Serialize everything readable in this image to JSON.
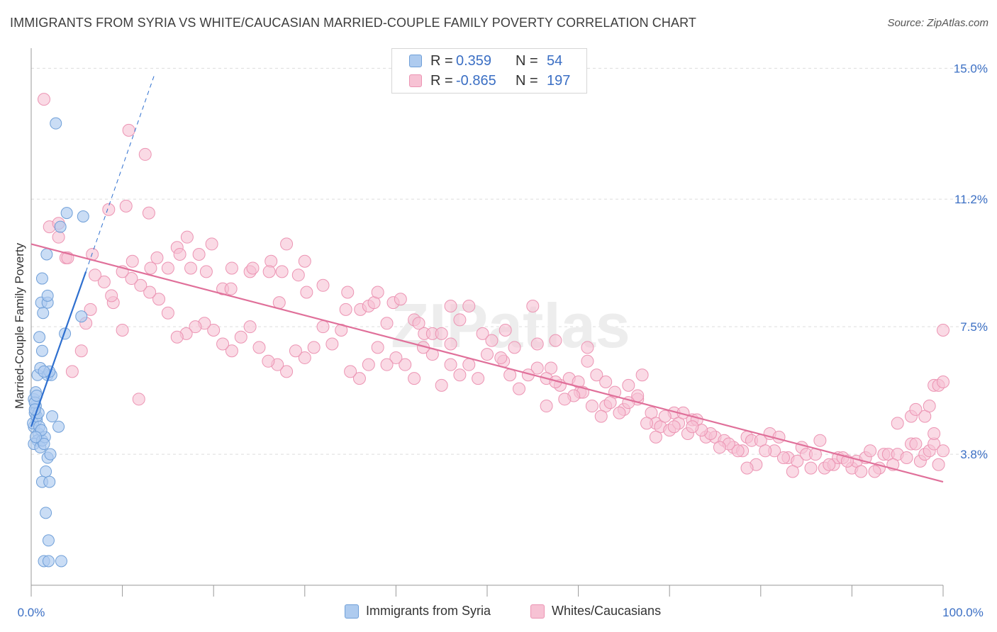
{
  "title": "IMMIGRANTS FROM SYRIA VS WHITE/CAUCASIAN MARRIED-COUPLE FAMILY POVERTY CORRELATION CHART",
  "source": "Source: ZipAtlas.com",
  "watermark": "ZIPatlas",
  "colors": {
    "blue_fill": "#aecbef",
    "blue_stroke": "#6f9fd8",
    "blue_line": "#2e6fcf",
    "pink_fill": "#f7c2d4",
    "pink_stroke": "#ec94b3",
    "pink_line": "#e0709a",
    "accent_text": "#3b6fc4"
  },
  "legend": {
    "rows": [
      {
        "r_label": "R =",
        "r_value": "0.359",
        "n_label": "N =",
        "n_value": "54"
      },
      {
        "r_label": "R =",
        "r_value": "-0.865",
        "n_label": "N =",
        "n_value": "197"
      }
    ]
  },
  "bottom_legend": [
    "Immigrants from Syria",
    "Whites/Caucasians"
  ],
  "chart_data": {
    "type": "scatter",
    "title": "IMMIGRANTS FROM SYRIA VS WHITE/CAUCASIAN MARRIED-COUPLE FAMILY POVERTY CORRELATION CHART",
    "xlabel": "",
    "ylabel": "Married-Couple Family Poverty",
    "x_tick_labels": [
      "0.0%",
      "100.0%"
    ],
    "y_tick_labels": [
      "3.8%",
      "7.5%",
      "11.2%",
      "15.0%"
    ],
    "y_ticks": [
      3.8,
      7.5,
      11.2,
      15.0
    ],
    "xlim": [
      0,
      100
    ],
    "ylim": [
      0,
      15.5
    ],
    "grid": true,
    "legend_position": "top-center",
    "series": [
      {
        "name": "Immigrants from Syria",
        "r": 0.359,
        "n": 54,
        "trend": {
          "x0": 0,
          "y0": 4.6,
          "x1": 6.0,
          "y1": 9.1,
          "dashed_to_x": 13.5,
          "dashed_to_y": 14.8
        },
        "points": [
          [
            0.3,
            4.6
          ],
          [
            0.5,
            5.2
          ],
          [
            0.4,
            5.0
          ],
          [
            0.6,
            4.8
          ],
          [
            0.2,
            4.7
          ],
          [
            0.8,
            4.4
          ],
          [
            0.3,
            5.4
          ],
          [
            0.5,
            5.6
          ],
          [
            0.4,
            5.3
          ],
          [
            0.7,
            4.2
          ],
          [
            0.6,
            4.9
          ],
          [
            0.9,
            4.6
          ],
          [
            0.3,
            4.1
          ],
          [
            1.0,
            4.0
          ],
          [
            1.2,
            4.2
          ],
          [
            1.5,
            4.3
          ],
          [
            1.4,
            4.1
          ],
          [
            1.1,
            4.5
          ],
          [
            0.8,
            5.0
          ],
          [
            0.5,
            4.3
          ],
          [
            0.7,
            6.1
          ],
          [
            1.0,
            6.3
          ],
          [
            1.8,
            6.1
          ],
          [
            2.2,
            6.1
          ],
          [
            2.0,
            6.2
          ],
          [
            0.9,
            7.2
          ],
          [
            1.2,
            6.8
          ],
          [
            1.1,
            8.2
          ],
          [
            1.8,
            8.2
          ],
          [
            1.8,
            8.4
          ],
          [
            1.3,
            7.9
          ],
          [
            1.2,
            8.9
          ],
          [
            1.7,
            9.6
          ],
          [
            3.7,
            7.3
          ],
          [
            5.5,
            7.8
          ],
          [
            2.3,
            4.9
          ],
          [
            3.0,
            4.6
          ],
          [
            1.8,
            3.7
          ],
          [
            2.1,
            3.8
          ],
          [
            1.6,
            3.3
          ],
          [
            1.2,
            3.0
          ],
          [
            2.0,
            3.0
          ],
          [
            1.6,
            2.1
          ],
          [
            1.9,
            1.3
          ],
          [
            1.4,
            0.7
          ],
          [
            1.9,
            0.7
          ],
          [
            3.3,
            0.7
          ],
          [
            3.9,
            10.8
          ],
          [
            5.7,
            10.7
          ],
          [
            3.2,
            10.4
          ],
          [
            2.7,
            13.4
          ],
          [
            0.4,
            5.1
          ],
          [
            1.4,
            6.2
          ],
          [
            0.6,
            5.5
          ]
        ]
      },
      {
        "name": "Whites/Caucasians",
        "r": -0.865,
        "n": 197,
        "trend": {
          "x0": 0,
          "y0": 9.9,
          "x1": 100,
          "y1": 3.0
        },
        "points": [
          [
            1.4,
            14.1
          ],
          [
            10.7,
            13.2
          ],
          [
            12.5,
            12.5
          ],
          [
            10.4,
            11.0
          ],
          [
            8.5,
            10.9
          ],
          [
            12.9,
            10.8
          ],
          [
            2.0,
            10.4
          ],
          [
            3.0,
            10.5
          ],
          [
            3.0,
            10.1
          ],
          [
            3.8,
            9.5
          ],
          [
            4.0,
            9.5
          ],
          [
            6.7,
            9.6
          ],
          [
            11.1,
            9.4
          ],
          [
            13.8,
            9.5
          ],
          [
            15.0,
            9.2
          ],
          [
            13.1,
            9.2
          ],
          [
            16.0,
            9.8
          ],
          [
            16.3,
            9.6
          ],
          [
            17.1,
            10.1
          ],
          [
            17.5,
            9.2
          ],
          [
            18.4,
            9.6
          ],
          [
            19.2,
            9.1
          ],
          [
            19.8,
            9.9
          ],
          [
            21.0,
            8.6
          ],
          [
            21.9,
            8.6
          ],
          [
            22.0,
            9.2
          ],
          [
            24.0,
            9.1
          ],
          [
            24.3,
            9.2
          ],
          [
            26.3,
            9.4
          ],
          [
            26.1,
            9.1
          ],
          [
            27.5,
            9.1
          ],
          [
            28.0,
            9.9
          ],
          [
            30.0,
            9.4
          ],
          [
            29.3,
            9.0
          ],
          [
            30.2,
            8.5
          ],
          [
            27.2,
            8.2
          ],
          [
            32.0,
            8.7
          ],
          [
            34.5,
            8.0
          ],
          [
            34.7,
            8.5
          ],
          [
            36.1,
            8.0
          ],
          [
            37.0,
            8.1
          ],
          [
            37.6,
            8.2
          ],
          [
            38.0,
            8.5
          ],
          [
            39.0,
            7.6
          ],
          [
            39.7,
            8.2
          ],
          [
            40.5,
            8.3
          ],
          [
            42.0,
            7.7
          ],
          [
            42.5,
            7.6
          ],
          [
            43.1,
            7.3
          ],
          [
            44.0,
            7.3
          ],
          [
            45.0,
            7.3
          ],
          [
            46.0,
            7.0
          ],
          [
            46.0,
            8.1
          ],
          [
            47.0,
            7.7
          ],
          [
            48.0,
            8.1
          ],
          [
            49.5,
            7.3
          ],
          [
            50.0,
            6.7
          ],
          [
            50.5,
            7.1
          ],
          [
            52.0,
            7.4
          ],
          [
            51.8,
            6.5
          ],
          [
            53.0,
            6.9
          ],
          [
            55.0,
            8.1
          ],
          [
            55.5,
            7.0
          ],
          [
            57.0,
            6.3
          ],
          [
            56.5,
            6.0
          ],
          [
            58.0,
            5.8
          ],
          [
            57.5,
            7.1
          ],
          [
            59.0,
            6.0
          ],
          [
            60.0,
            5.9
          ],
          [
            60.2,
            5.6
          ],
          [
            61.0,
            6.5
          ],
          [
            62.0,
            6.1
          ],
          [
            63.0,
            5.9
          ],
          [
            61.0,
            6.9
          ],
          [
            64.0,
            5.6
          ],
          [
            63.0,
            5.2
          ],
          [
            65.0,
            5.1
          ],
          [
            65.5,
            5.8
          ],
          [
            66.5,
            5.4
          ],
          [
            67.0,
            6.1
          ],
          [
            68.0,
            5.0
          ],
          [
            68.5,
            4.7
          ],
          [
            69.0,
            4.6
          ],
          [
            70.0,
            4.5
          ],
          [
            70.5,
            5.0
          ],
          [
            71.0,
            4.7
          ],
          [
            72.0,
            4.4
          ],
          [
            72.5,
            4.8
          ],
          [
            73.0,
            4.8
          ],
          [
            74.0,
            4.3
          ],
          [
            75.0,
            4.3
          ],
          [
            76.0,
            4.2
          ],
          [
            77.0,
            4.0
          ],
          [
            78.0,
            3.9
          ],
          [
            78.5,
            4.3
          ],
          [
            79.0,
            4.2
          ],
          [
            80.0,
            4.2
          ],
          [
            81.0,
            4.4
          ],
          [
            82.0,
            4.3
          ],
          [
            83.0,
            3.7
          ],
          [
            84.0,
            3.6
          ],
          [
            84.5,
            4.0
          ],
          [
            85.0,
            3.8
          ],
          [
            86.0,
            3.8
          ],
          [
            86.5,
            4.2
          ],
          [
            87.0,
            3.4
          ],
          [
            88.0,
            3.5
          ],
          [
            88.5,
            3.7
          ],
          [
            89.0,
            3.7
          ],
          [
            90.0,
            3.4
          ],
          [
            90.5,
            3.6
          ],
          [
            91.0,
            3.3
          ],
          [
            91.5,
            3.7
          ],
          [
            92.0,
            3.9
          ],
          [
            93.0,
            3.4
          ],
          [
            93.5,
            3.8
          ],
          [
            94.0,
            3.8
          ],
          [
            95.0,
            3.8
          ],
          [
            96.0,
            3.7
          ],
          [
            96.5,
            4.1
          ],
          [
            97.0,
            4.1
          ],
          [
            97.5,
            3.6
          ],
          [
            98.0,
            3.8
          ],
          [
            98.5,
            3.9
          ],
          [
            99.0,
            4.1
          ],
          [
            99.5,
            3.5
          ],
          [
            100.0,
            3.9
          ],
          [
            95.0,
            4.7
          ],
          [
            96.5,
            4.9
          ],
          [
            97.0,
            5.1
          ],
          [
            98.0,
            4.9
          ],
          [
            98.5,
            5.2
          ],
          [
            99.0,
            5.8
          ],
          [
            99.5,
            5.8
          ],
          [
            100.0,
            5.9
          ],
          [
            100.0,
            7.4
          ],
          [
            99.0,
            4.4
          ],
          [
            94.5,
            3.5
          ],
          [
            92.5,
            3.3
          ],
          [
            89.5,
            3.6
          ],
          [
            87.5,
            3.5
          ],
          [
            85.5,
            3.4
          ],
          [
            83.5,
            3.3
          ],
          [
            82.5,
            3.7
          ],
          [
            81.5,
            3.9
          ],
          [
            80.5,
            3.9
          ],
          [
            79.5,
            3.5
          ],
          [
            78.5,
            3.4
          ],
          [
            77.5,
            3.9
          ],
          [
            76.5,
            4.1
          ],
          [
            75.5,
            4.0
          ],
          [
            74.5,
            4.4
          ],
          [
            73.5,
            4.5
          ],
          [
            72.5,
            4.6
          ],
          [
            71.5,
            5.0
          ],
          [
            70.5,
            4.6
          ],
          [
            69.5,
            4.9
          ],
          [
            68.5,
            4.3
          ],
          [
            67.5,
            4.7
          ],
          [
            66.5,
            5.5
          ],
          [
            65.5,
            5.3
          ],
          [
            64.5,
            5.0
          ],
          [
            63.5,
            5.3
          ],
          [
            62.5,
            4.9
          ],
          [
            61.5,
            5.2
          ],
          [
            60.5,
            5.6
          ],
          [
            59.5,
            5.5
          ],
          [
            58.5,
            5.4
          ],
          [
            57.5,
            5.9
          ],
          [
            56.5,
            5.2
          ],
          [
            55.5,
            6.3
          ],
          [
            54.5,
            6.1
          ],
          [
            53.5,
            5.7
          ],
          [
            52.5,
            6.1
          ],
          [
            51.5,
            6.6
          ],
          [
            49.0,
            6.0
          ],
          [
            48.0,
            6.4
          ],
          [
            47.0,
            6.1
          ],
          [
            46.0,
            6.4
          ],
          [
            45.0,
            5.8
          ],
          [
            44.0,
            6.7
          ],
          [
            43.0,
            6.9
          ],
          [
            42.0,
            6.0
          ],
          [
            41.0,
            6.4
          ],
          [
            40.0,
            6.6
          ],
          [
            39.0,
            6.4
          ],
          [
            38.0,
            6.9
          ],
          [
            37.0,
            6.4
          ],
          [
            36.0,
            6.0
          ],
          [
            35.0,
            6.2
          ],
          [
            34.0,
            7.4
          ],
          [
            33.0,
            7.0
          ],
          [
            32.0,
            7.5
          ],
          [
            31.0,
            6.9
          ],
          [
            30.0,
            6.6
          ],
          [
            29.0,
            6.8
          ],
          [
            28.0,
            6.2
          ],
          [
            27.0,
            6.4
          ],
          [
            26.0,
            6.5
          ],
          [
            25.0,
            6.9
          ],
          [
            24.0,
            7.5
          ],
          [
            23.0,
            7.2
          ],
          [
            22.0,
            6.8
          ],
          [
            21.0,
            7.0
          ],
          [
            20.0,
            7.4
          ],
          [
            19.0,
            7.6
          ],
          [
            18.0,
            7.5
          ],
          [
            17.0,
            7.3
          ],
          [
            16.0,
            7.2
          ],
          [
            15.0,
            7.9
          ],
          [
            14.0,
            8.3
          ],
          [
            13.0,
            8.5
          ],
          [
            12.0,
            8.7
          ],
          [
            11.0,
            8.9
          ],
          [
            10.0,
            9.1
          ],
          [
            9.0,
            8.2
          ],
          [
            8.0,
            8.8
          ],
          [
            7.0,
            9.0
          ],
          [
            6.5,
            8.0
          ],
          [
            6.0,
            7.6
          ],
          [
            5.5,
            6.8
          ],
          [
            4.5,
            6.2
          ],
          [
            11.8,
            5.4
          ],
          [
            10.0,
            7.4
          ],
          [
            8.8,
            8.4
          ]
        ]
      }
    ]
  }
}
